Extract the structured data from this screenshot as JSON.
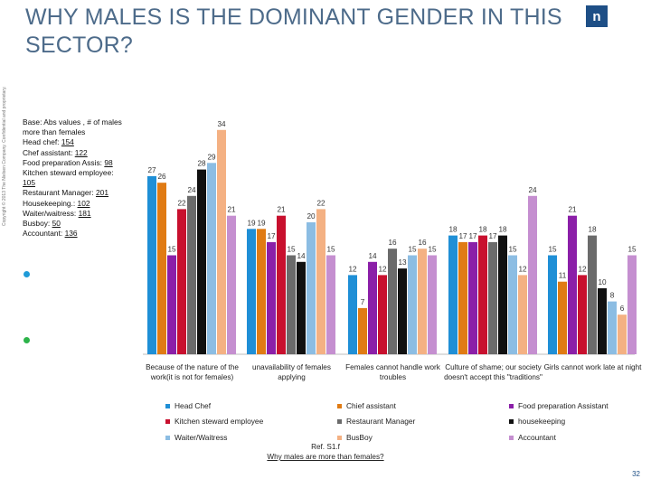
{
  "copyright": "Copyright © 2013 The Nielsen Company. Confidential and proprietary.",
  "title": "WHY MALES IS THE DOMINANT GENDER IN THIS SECTOR?",
  "logo_text": "n",
  "base_note": {
    "lines": [
      "Base: Abs values , # of males",
      "more than females"
    ],
    "items": [
      {
        "label": "Head chef: ",
        "value": "154"
      },
      {
        "label": "Chef assistant: ",
        "value": "122"
      },
      {
        "label": "Food preparation Assis: ",
        "value": "98"
      },
      {
        "label": "Kitchen steward employee:",
        "value": ""
      },
      {
        "label": "",
        "value": "105"
      },
      {
        "label": "Restaurant Manager: ",
        "value": "201"
      },
      {
        "label": "Housekeeping.: ",
        "value": "102"
      },
      {
        "label": "Waiter/waitress: ",
        "value": "181"
      },
      {
        "label": "Busboy: ",
        "value": "50"
      },
      {
        "label": "Accountant: ",
        "value": "136"
      }
    ]
  },
  "decor_colors": {
    "dot_blue": "#1f9bd8",
    "dot_green": "#2db34a"
  },
  "chart_data": {
    "type": "bar",
    "title": "",
    "categories": [
      "Because of the nature of the work(it is not for females)",
      "unavailability of females applying",
      "Females cannot handle work troubles",
      "Culture of shame; our society doesn't accept this \"traditions\"",
      "Girls cannot work late at night"
    ],
    "series": [
      {
        "name": "Head Chef",
        "color": "#1f8fd6",
        "values": [
          27,
          19,
          12,
          18,
          15
        ]
      },
      {
        "name": "Chief assistant",
        "color": "#e07b14",
        "values": [
          26,
          19,
          7,
          17,
          11
        ]
      },
      {
        "name": "Food preparation Assistant",
        "color": "#8b1fa8",
        "values": [
          15,
          17,
          14,
          17,
          21
        ]
      },
      {
        "name": "Kitchen steward employee",
        "color": "#c8102e",
        "values": [
          22,
          21,
          12,
          18,
          12
        ]
      },
      {
        "name": "Restaurant Manager",
        "color": "#6b6b6b",
        "values": [
          24,
          15,
          16,
          17,
          18
        ]
      },
      {
        "name": "housekeeping",
        "color": "#111111",
        "values": [
          28,
          14,
          13,
          18,
          10
        ]
      },
      {
        "name": "Waiter/Waitress",
        "color": "#8cbde3",
        "values": [
          29,
          20,
          15,
          15,
          8
        ]
      },
      {
        "name": "BusBoy",
        "color": "#f4b183",
        "values": [
          34,
          22,
          16,
          12,
          6
        ]
      },
      {
        "name": "Accountant",
        "color": "#c58fd0",
        "values": [
          21,
          15,
          15,
          24,
          15
        ]
      }
    ],
    "ylim": [
      0,
      34
    ],
    "xlabel": "",
    "ylabel": "",
    "grid": false,
    "legend": "bottom"
  },
  "source": {
    "ref": "Ref. S1.f",
    "question": "Why males are more than females?"
  },
  "page_number": "32"
}
